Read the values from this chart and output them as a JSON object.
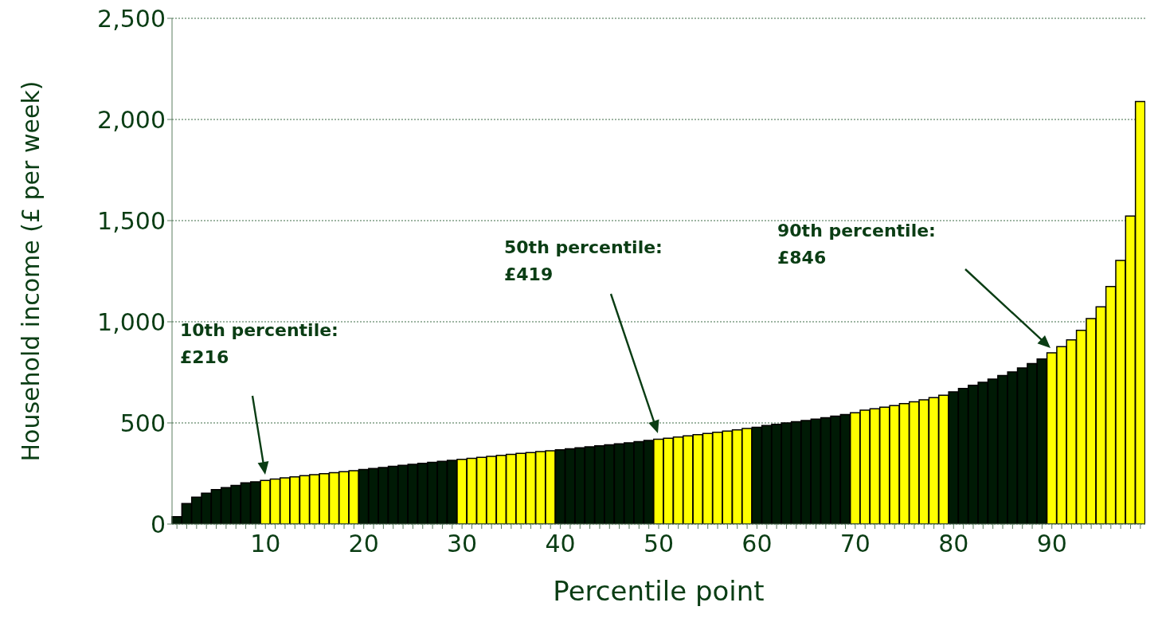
{
  "chart_data": {
    "type": "bar",
    "xlabel": "Percentile point",
    "ylabel": "Household income (£ per week)",
    "categories": [
      null,
      null,
      null,
      null,
      null,
      null,
      null,
      null,
      null,
      "10",
      null,
      null,
      null,
      null,
      null,
      null,
      null,
      null,
      null,
      "20",
      null,
      null,
      null,
      null,
      null,
      null,
      null,
      null,
      null,
      "30",
      null,
      null,
      null,
      null,
      null,
      null,
      null,
      null,
      null,
      "40",
      null,
      null,
      null,
      null,
      null,
      null,
      null,
      null,
      null,
      "50",
      null,
      null,
      null,
      null,
      null,
      null,
      null,
      null,
      null,
      "60",
      null,
      null,
      null,
      null,
      null,
      null,
      null,
      null,
      null,
      "70",
      null,
      null,
      null,
      null,
      null,
      null,
      null,
      null,
      null,
      "80",
      null,
      null,
      null,
      null,
      null,
      null,
      null,
      null,
      null,
      "90",
      null,
      null,
      null,
      null,
      null,
      null,
      null,
      null,
      null
    ],
    "values": [
      36,
      101,
      133,
      153,
      170,
      180,
      191,
      204,
      209,
      216,
      222,
      228,
      233,
      239,
      244,
      249,
      254,
      259,
      264,
      270,
      275,
      280,
      285,
      290,
      295,
      300,
      305,
      310,
      315,
      320,
      325,
      330,
      335,
      340,
      344,
      349,
      353,
      358,
      362,
      367,
      372,
      377,
      382,
      387,
      392,
      397,
      402,
      407,
      413,
      419,
      424,
      430,
      436,
      442,
      448,
      454,
      460,
      466,
      472,
      478,
      487,
      493,
      500,
      506,
      512,
      519,
      526,
      533,
      541,
      550,
      563,
      570,
      578,
      586,
      595,
      604,
      614,
      625,
      637,
      654,
      670,
      686,
      701,
      717,
      734,
      752,
      772,
      793,
      816,
      846,
      877,
      910,
      958,
      1016,
      1074,
      1174,
      1303,
      1523,
      2089
    ],
    "colors": [
      "#001a05",
      "#001a05",
      "#001a05",
      "#001a05",
      "#001a05",
      "#001a05",
      "#001a05",
      "#001a05",
      "#001a05",
      "#ffff00",
      "#ffff00",
      "#ffff00",
      "#ffff00",
      "#ffff00",
      "#ffff00",
      "#ffff00",
      "#ffff00",
      "#ffff00",
      "#ffff00",
      "#001a05",
      "#001a05",
      "#001a05",
      "#001a05",
      "#001a05",
      "#001a05",
      "#001a05",
      "#001a05",
      "#001a05",
      "#001a05",
      "#ffff00",
      "#ffff00",
      "#ffff00",
      "#ffff00",
      "#ffff00",
      "#ffff00",
      "#ffff00",
      "#ffff00",
      "#ffff00",
      "#ffff00",
      "#001a05",
      "#001a05",
      "#001a05",
      "#001a05",
      "#001a05",
      "#001a05",
      "#001a05",
      "#001a05",
      "#001a05",
      "#001a05",
      "#ffff00",
      "#ffff00",
      "#ffff00",
      "#ffff00",
      "#ffff00",
      "#ffff00",
      "#ffff00",
      "#ffff00",
      "#ffff00",
      "#ffff00",
      "#001a05",
      "#001a05",
      "#001a05",
      "#001a05",
      "#001a05",
      "#001a05",
      "#001a05",
      "#001a05",
      "#001a05",
      "#001a05",
      "#ffff00",
      "#ffff00",
      "#ffff00",
      "#ffff00",
      "#ffff00",
      "#ffff00",
      "#ffff00",
      "#ffff00",
      "#ffff00",
      "#ffff00",
      "#001a05",
      "#001a05",
      "#001a05",
      "#001a05",
      "#001a05",
      "#001a05",
      "#001a05",
      "#001a05",
      "#001a05",
      "#001a05",
      "#ffff00",
      "#ffff00",
      "#ffff00",
      "#ffff00",
      "#ffff00",
      "#ffff00",
      "#ffff00",
      "#ffff00",
      "#ffff00",
      "#ffff00"
    ],
    "ylim": [
      0,
      2500
    ],
    "yticks": [
      0,
      500,
      {
        "value": 1000,
        "label": "1,000"
      },
      {
        "value": 1500,
        "label": "1,500"
      },
      {
        "value": 2000,
        "label": "2,000"
      },
      {
        "value": 2500,
        "label": "2,500"
      }
    ],
    "grid": "y",
    "annotations": [
      "10th percentile:\n£216",
      "50th percentile:\n£419",
      "90th percentile:\n£846"
    ]
  }
}
